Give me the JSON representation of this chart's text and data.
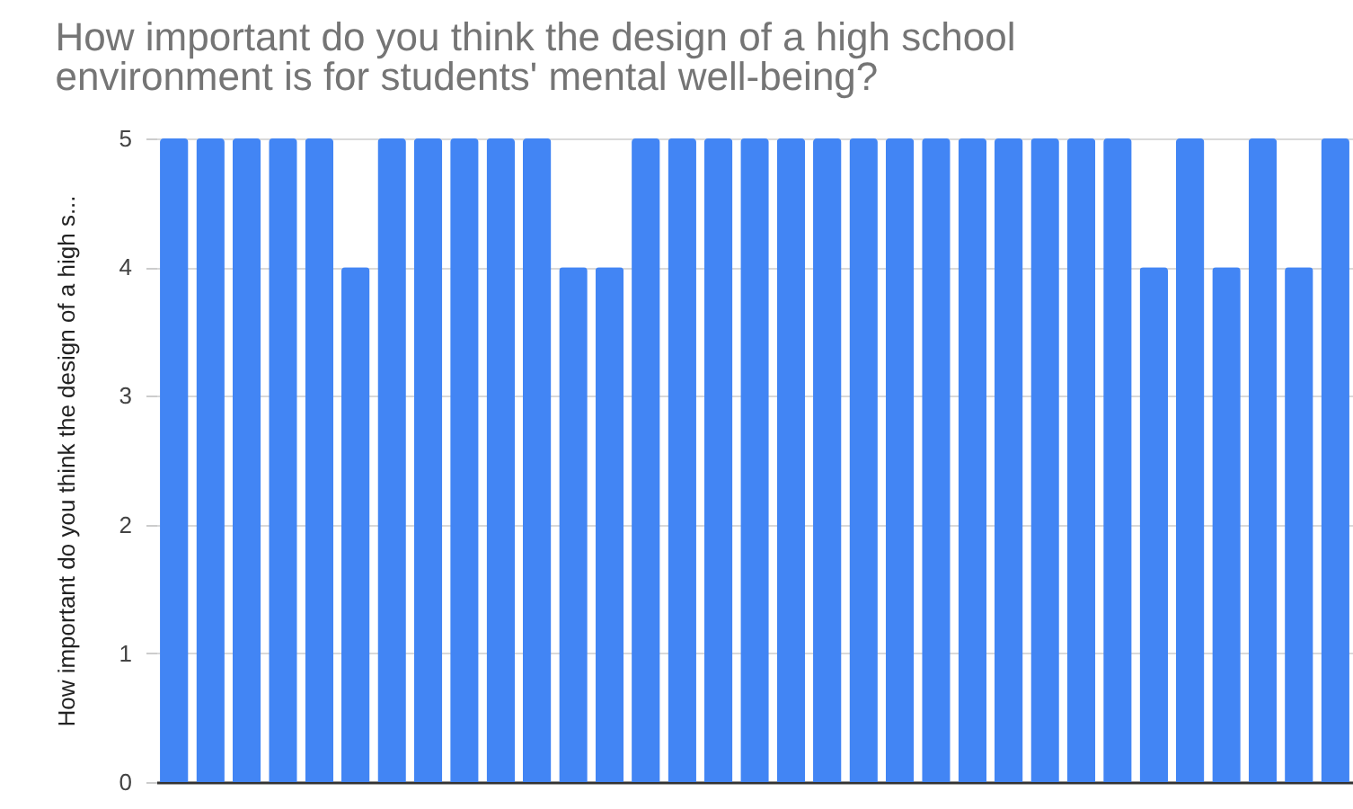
{
  "chart_data": {
    "type": "bar",
    "title": "How important do you think the design of a high school environment is for students' mental well-being?",
    "ylabel": "How important do you think the design of a high s...",
    "categories": [
      null,
      null,
      null,
      null,
      null,
      null,
      null,
      null,
      null,
      null,
      null,
      null,
      null,
      null,
      null,
      null,
      null,
      null,
      null,
      null,
      null,
      null,
      null,
      null,
      null,
      null,
      null,
      null,
      null,
      null,
      null,
      null,
      null
    ],
    "values": [
      5,
      5,
      5,
      5,
      5,
      4,
      5,
      5,
      5,
      5,
      5,
      4,
      4,
      5,
      5,
      5,
      5,
      5,
      5,
      5,
      5,
      5,
      5,
      5,
      5,
      5,
      5,
      4,
      5,
      4,
      5,
      4,
      5
    ],
    "color": "#4285f4",
    "ylim": [
      0,
      5
    ],
    "yticks": [
      0,
      1,
      2,
      3,
      4,
      5
    ],
    "grid": "y",
    "tick_labels": "y"
  }
}
